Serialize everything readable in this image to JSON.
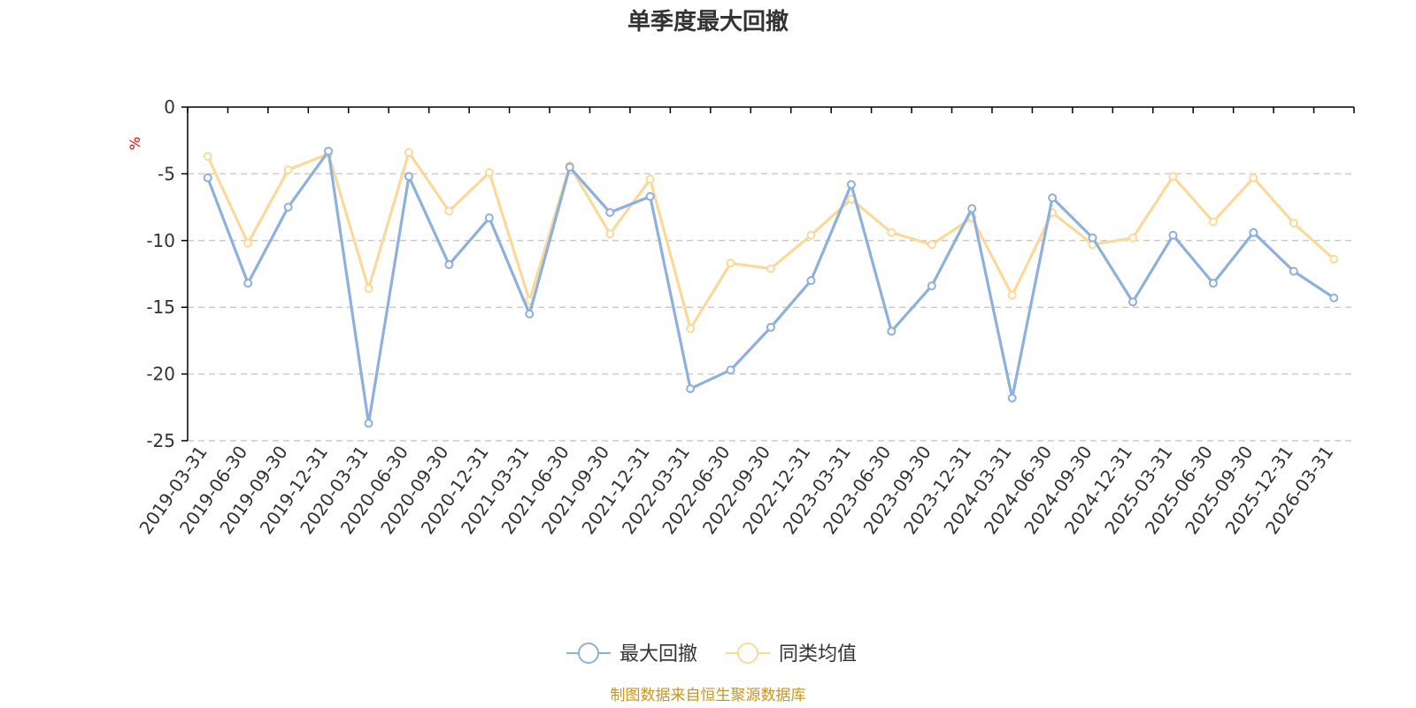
{
  "chart_data": {
    "type": "line",
    "title": "单季度最大回撤",
    "ylabel": "%",
    "ylim": [
      -25,
      0
    ],
    "yticks": [
      0,
      -5,
      -10,
      -15,
      -20,
      -25
    ],
    "grid": true,
    "legend_position": "bottom-center",
    "categories": [
      "2019-03-31",
      "2019-06-30",
      "2019-09-30",
      "2019-12-31",
      "2020-03-31",
      "2020-06-30",
      "2020-09-30",
      "2020-12-31",
      "2021-03-31",
      "2021-06-30",
      "2021-09-30",
      "2021-12-31",
      "2022-03-31",
      "2022-06-30",
      "2022-09-30",
      "2022-12-31",
      "2023-03-31",
      "2023-06-30",
      "2023-09-30",
      "2023-12-31",
      "2024-03-31",
      "2024-06-30",
      "2024-09-30",
      "2024-12-31",
      "2025-03-31",
      "2025-06-30",
      "2025-09-30",
      "2025-12-31",
      "2026-03-31"
    ],
    "series": [
      {
        "name": "最大回撤",
        "color": "#8eb0dc",
        "values": [
          -5.3,
          -13.2,
          -7.5,
          -3.3,
          -23.7,
          -5.2,
          -11.8,
          -8.3,
          -15.5,
          -4.5,
          -7.9,
          -6.7,
          -21.1,
          -19.7,
          -16.5,
          -13.0,
          -5.8,
          -16.8,
          -13.4,
          -7.6,
          -21.8,
          -6.8,
          -9.8,
          -14.6,
          -9.6,
          -13.2,
          -9.4,
          -12.3,
          -14.3
        ]
      },
      {
        "name": "同类均值",
        "color": "#fbd99b",
        "values": [
          -3.7,
          -10.2,
          -4.7,
          -3.5,
          -13.6,
          -3.4,
          -7.8,
          -4.9,
          -14.5,
          -4.4,
          -9.5,
          -5.4,
          -16.6,
          -11.7,
          -12.1,
          -9.6,
          -6.9,
          -9.4,
          -10.3,
          -8.3,
          -14.1,
          -7.9,
          -10.3,
          -9.8,
          -5.2,
          -8.6,
          -5.3,
          -8.7,
          -11.4
        ]
      }
    ]
  },
  "footer": {
    "source": "制图数据来自恒生聚源数据库"
  }
}
